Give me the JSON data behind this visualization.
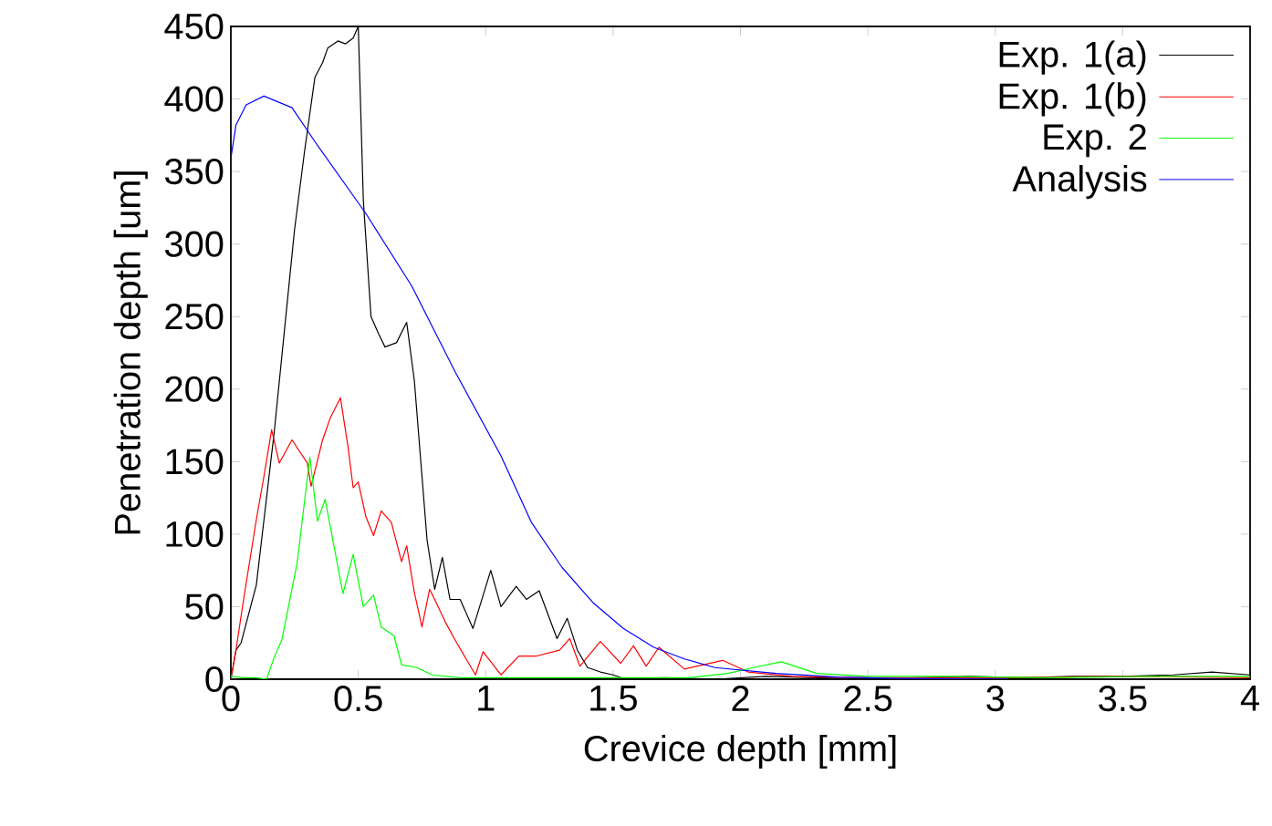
{
  "chart_data": {
    "type": "line",
    "xlabel": "Crevice depth [mm]",
    "ylabel": "Penetration depth [um]",
    "xlim": [
      0,
      4
    ],
    "ylim": [
      0,
      450
    ],
    "xticks": [
      0,
      0.5,
      1,
      1.5,
      2,
      2.5,
      3,
      3.5,
      4
    ],
    "yticks": [
      0,
      50,
      100,
      150,
      200,
      250,
      300,
      350,
      400,
      450
    ],
    "grid": false,
    "legend": "top right",
    "marker": "none",
    "line_style": "solid",
    "series": [
      {
        "name": "Exp. 1(a)",
        "color": "#000000",
        "x": [
          0,
          0.02,
          0.04,
          0.07,
          0.1,
          0.13,
          0.17,
          0.21,
          0.25,
          0.29,
          0.33,
          0.36,
          0.38,
          0.42,
          0.45,
          0.48,
          0.5,
          0.52,
          0.55,
          0.58,
          0.605,
          0.65,
          0.69,
          0.72,
          0.77,
          0.8,
          0.83,
          0.86,
          0.9,
          0.95,
          1.02,
          1.06,
          1.12,
          1.16,
          1.21,
          1.28,
          1.32,
          1.36,
          1.4,
          1.45,
          1.5,
          1.55,
          1.7,
          1.9,
          2.1,
          2.3,
          2.5,
          2.7,
          2.9,
          3.1,
          3.3,
          3.5,
          3.7,
          3.85,
          4
        ],
        "values": [
          0,
          20,
          25,
          45,
          65,
          110,
          170,
          240,
          310,
          365,
          415,
          425,
          435,
          440,
          438,
          442,
          450,
          330,
          250,
          238,
          229,
          232,
          246,
          206,
          96,
          62,
          84,
          55,
          55,
          35,
          75,
          50,
          64,
          55,
          61,
          28,
          42,
          20,
          8,
          5,
          3,
          0,
          1,
          0,
          2,
          1,
          0,
          1,
          2,
          1,
          2,
          2,
          3,
          5,
          3
        ]
      },
      {
        "name": "Exp. 1(b)",
        "color": "#ff0000",
        "x": [
          0,
          0.02,
          0.05,
          0.1,
          0.13,
          0.16,
          0.19,
          0.24,
          0.3,
          0.315,
          0.36,
          0.39,
          0.43,
          0.46,
          0.48,
          0.5,
          0.53,
          0.56,
          0.59,
          0.63,
          0.67,
          0.69,
          0.72,
          0.75,
          0.78,
          0.8,
          0.84,
          0.88,
          0.96,
          0.99,
          1.06,
          1.13,
          1.2,
          1.29,
          1.33,
          1.37,
          1.45,
          1.53,
          1.58,
          1.63,
          1.68,
          1.78,
          1.93,
          2.03,
          2.2,
          2.5,
          3,
          3.5,
          4
        ],
        "values": [
          0,
          20,
          55,
          110,
          140,
          172,
          149,
          165,
          149,
          133,
          165,
          180,
          194,
          160,
          132,
          136,
          112,
          99,
          116,
          108,
          81,
          92,
          60,
          36,
          62,
          55,
          40,
          27,
          3,
          19,
          3,
          16,
          16,
          20,
          28,
          9,
          26,
          11,
          23,
          9,
          22,
          7,
          13,
          5,
          2,
          1,
          1,
          2,
          1
        ]
      },
      {
        "name": "Exp. 2",
        "color": "#00ff00",
        "x": [
          0,
          0.05,
          0.1,
          0.14,
          0.17,
          0.2,
          0.26,
          0.31,
          0.34,
          0.37,
          0.44,
          0.48,
          0.52,
          0.56,
          0.59,
          0.64,
          0.67,
          0.73,
          0.79,
          0.9,
          1.2,
          1.5,
          1.8,
          1.95,
          2.05,
          2.16,
          2.3,
          2.5,
          2.8,
          3.2,
          3.6,
          4
        ],
        "values": [
          2,
          1,
          1,
          0,
          15,
          27,
          80,
          153,
          109,
          124,
          59,
          86,
          50,
          58,
          36,
          30,
          10,
          8,
          3,
          1,
          1,
          1,
          1,
          4,
          8,
          12,
          4,
          2,
          2,
          1,
          2,
          2
        ]
      },
      {
        "name": "Analysis",
        "color": "#0000ff",
        "x": [
          0,
          0.02,
          0.06,
          0.13,
          0.24,
          0.34,
          0.53,
          0.71,
          0.88,
          1.06,
          1.18,
          1.3,
          1.42,
          1.54,
          1.66,
          1.78,
          1.9,
          2.14,
          2.38,
          2.6,
          3.05
        ],
        "values": [
          359,
          382,
          396,
          402,
          394,
          368,
          321,
          271,
          212,
          154,
          108,
          77,
          53,
          35,
          22,
          14,
          8,
          4,
          1.5,
          0.5,
          0
        ]
      }
    ]
  }
}
